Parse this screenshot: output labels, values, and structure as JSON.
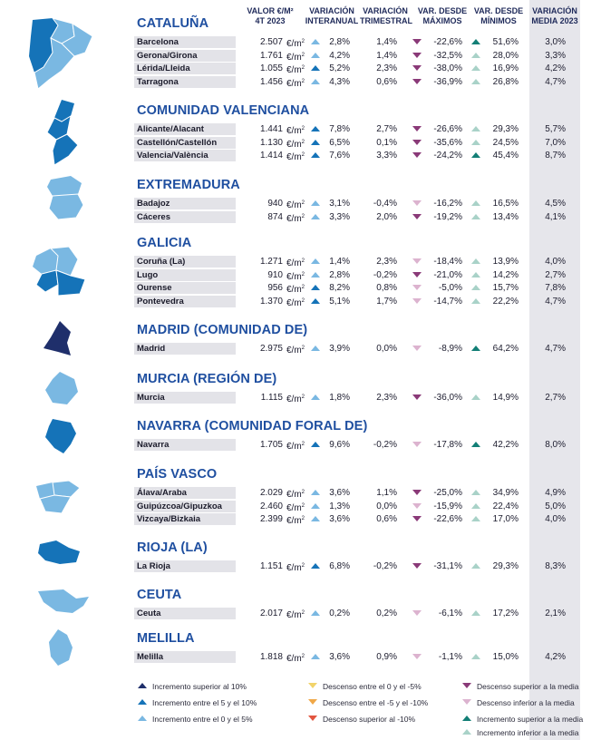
{
  "headers": {
    "valor": "VALOR €/M² 4T 2023",
    "interanual": "VARIACIÓN INTERANUAL",
    "trimestral": "VARIACIÓN TRIMESTRAL",
    "maximos": "VAR. DESDE MÁXIMOS",
    "minimos": "VAR. DESDE MÍNIMOS",
    "media": "VARIACIÓN MEDIA 2023"
  },
  "unit": "€/m",
  "unit_sup": "2",
  "colors": {
    "dark_blue": "#1f2f6b",
    "mid_blue": "#1573b8",
    "light_blue": "#7ab8e2",
    "dark_purple": "#8a3a78",
    "light_purple": "#dcb3cf",
    "dark_teal": "#137f76",
    "light_teal": "#a9d2c8",
    "yellow": "#f1d36a",
    "orange": "#f0a848",
    "red": "#e2553f",
    "title_blue": "#1f4fa0"
  },
  "regions": [
    {
      "title": "CATALUÑA",
      "rows": [
        {
          "name": "Barcelona",
          "val": "2.507",
          "i": "2,8%",
          "ic": "light_blue",
          "t": "1,4%",
          "mx": "-22,6%",
          "mxc": "dark_purple",
          "mn": "51,6%",
          "mnc": "dark_teal",
          "md": "3,0%"
        },
        {
          "name": "Gerona/Girona",
          "val": "1.761",
          "i": "4,2%",
          "ic": "light_blue",
          "t": "1,4%",
          "mx": "-32,5%",
          "mxc": "dark_purple",
          "mn": "28,0%",
          "mnc": "light_teal",
          "md": "3,3%"
        },
        {
          "name": "Lérida/Lleida",
          "val": "1.055",
          "i": "5,2%",
          "ic": "mid_blue",
          "t": "2,3%",
          "mx": "-38,0%",
          "mxc": "dark_purple",
          "mn": "16,9%",
          "mnc": "light_teal",
          "md": "4,2%"
        },
        {
          "name": "Tarragona",
          "val": "1.456",
          "i": "4,3%",
          "ic": "light_blue",
          "t": "0,6%",
          "mx": "-36,9%",
          "mxc": "dark_purple",
          "mn": "26,8%",
          "mnc": "light_teal",
          "md": "4,7%"
        }
      ]
    },
    {
      "title": "COMUNIDAD VALENCIANA",
      "rows": [
        {
          "name": "Alicante/Alacant",
          "val": "1.441",
          "i": "7,8%",
          "ic": "mid_blue",
          "t": "2,7%",
          "mx": "-26,6%",
          "mxc": "dark_purple",
          "mn": "29,3%",
          "mnc": "light_teal",
          "md": "5,7%"
        },
        {
          "name": "Castellón/Castellón",
          "val": "1.130",
          "i": "6,5%",
          "ic": "mid_blue",
          "t": "0,1%",
          "mx": "-35,6%",
          "mxc": "dark_purple",
          "mn": "24,5%",
          "mnc": "light_teal",
          "md": "7,0%"
        },
        {
          "name": "Valencia/València",
          "val": "1.414",
          "i": "7,6%",
          "ic": "mid_blue",
          "t": "3,3%",
          "mx": "-24,2%",
          "mxc": "dark_purple",
          "mn": "45,4%",
          "mnc": "dark_teal",
          "md": "8,7%"
        }
      ]
    },
    {
      "title": "EXTREMADURA",
      "rows": [
        {
          "name": "Badajoz",
          "val": "940",
          "i": "3,1%",
          "ic": "light_blue",
          "t": "-0,4%",
          "mx": "-16,2%",
          "mxc": "light_purple",
          "mn": "16,5%",
          "mnc": "light_teal",
          "md": "4,5%"
        },
        {
          "name": "Cáceres",
          "val": "874",
          "i": "3,3%",
          "ic": "light_blue",
          "t": "2,0%",
          "mx": "-19,2%",
          "mxc": "dark_purple",
          "mn": "13,4%",
          "mnc": "light_teal",
          "md": "4,1%"
        }
      ]
    },
    {
      "title": "GALICIA",
      "rows": [
        {
          "name": "Coruña (La)",
          "val": "1.271",
          "i": "1,4%",
          "ic": "light_blue",
          "t": "2,3%",
          "mx": "-18,4%",
          "mxc": "light_purple",
          "mn": "13,9%",
          "mnc": "light_teal",
          "md": "4,0%"
        },
        {
          "name": "Lugo",
          "val": "910",
          "i": "2,8%",
          "ic": "light_blue",
          "t": "-0,2%",
          "mx": "-21,0%",
          "mxc": "dark_purple",
          "mn": "14,2%",
          "mnc": "light_teal",
          "md": "2,7%"
        },
        {
          "name": "Ourense",
          "val": "956",
          "i": "8,2%",
          "ic": "mid_blue",
          "t": "0,8%",
          "mx": "-5,0%",
          "mxc": "light_purple",
          "mn": "15,7%",
          "mnc": "light_teal",
          "md": "7,8%"
        },
        {
          "name": "Pontevedra",
          "val": "1.370",
          "i": "5,1%",
          "ic": "mid_blue",
          "t": "1,7%",
          "mx": "-14,7%",
          "mxc": "light_purple",
          "mn": "22,2%",
          "mnc": "light_teal",
          "md": "4,7%"
        }
      ]
    },
    {
      "title": "MADRID (COMUNIDAD DE)",
      "rows": [
        {
          "name": "Madrid",
          "val": "2.975",
          "i": "3,9%",
          "ic": "light_blue",
          "t": "0,0%",
          "mx": "-8,9%",
          "mxc": "light_purple",
          "mn": "64,2%",
          "mnc": "dark_teal",
          "md": "4,7%"
        }
      ]
    },
    {
      "title": "MURCIA (REGIÓN DE)",
      "rows": [
        {
          "name": "Murcia",
          "val": "1.115",
          "i": "1,8%",
          "ic": "light_blue",
          "t": "2,3%",
          "mx": "-36,0%",
          "mxc": "dark_purple",
          "mn": "14,9%",
          "mnc": "light_teal",
          "md": "2,7%"
        }
      ]
    },
    {
      "title": "NAVARRA (COMUNIDAD FORAL DE)",
      "rows": [
        {
          "name": "Navarra",
          "val": "1.705",
          "i": "9,6%",
          "ic": "mid_blue",
          "t": "-0,2%",
          "mx": "-17,8%",
          "mxc": "light_purple",
          "mn": "42,2%",
          "mnc": "dark_teal",
          "md": "8,0%"
        }
      ]
    },
    {
      "title": "PAÍS VASCO",
      "rows": [
        {
          "name": "Álava/Araba",
          "val": "2.029",
          "i": "3,6%",
          "ic": "light_blue",
          "t": "1,1%",
          "mx": "-25,0%",
          "mxc": "dark_purple",
          "mn": "34,9%",
          "mnc": "light_teal",
          "md": "4,9%"
        },
        {
          "name": "Guipúzcoa/Gipuzkoa",
          "val": "2.460",
          "i": "1,3%",
          "ic": "light_blue",
          "t": "0,0%",
          "mx": "-15,9%",
          "mxc": "light_purple",
          "mn": "22,4%",
          "mnc": "light_teal",
          "md": "5,0%"
        },
        {
          "name": "Vizcaya/Bizkaia",
          "val": "2.399",
          "i": "3,6%",
          "ic": "light_blue",
          "t": "0,6%",
          "mx": "-22,6%",
          "mxc": "dark_purple",
          "mn": "17,0%",
          "mnc": "light_teal",
          "md": "4,0%"
        }
      ]
    },
    {
      "title": "RIOJA (LA)",
      "rows": [
        {
          "name": "La Rioja",
          "val": "1.151",
          "i": "6,8%",
          "ic": "mid_blue",
          "t": "-0,2%",
          "mx": "-31,1%",
          "mxc": "dark_purple",
          "mn": "29,3%",
          "mnc": "light_teal",
          "md": "8,3%"
        }
      ]
    },
    {
      "title": "CEUTA",
      "rows": [
        {
          "name": "Ceuta",
          "val": "2.017",
          "i": "0,2%",
          "ic": "light_blue",
          "t": "0,2%",
          "mx": "-6,1%",
          "mxc": "light_purple",
          "mn": "17,2%",
          "mnc": "light_teal",
          "md": "2,1%"
        }
      ]
    },
    {
      "title": "MELILLA",
      "rows": [
        {
          "name": "Melilla",
          "val": "1.818",
          "i": "3,6%",
          "ic": "light_blue",
          "t": "0,9%",
          "mx": "-1,1%",
          "mxc": "light_purple",
          "mn": "15,0%",
          "mnc": "light_teal",
          "md": "4,2%"
        }
      ]
    }
  ],
  "legend": [
    {
      "label": "Incremento superior al 10%",
      "color": "dark_blue",
      "dir": "up"
    },
    {
      "label": "Incremento entre el 5 y el 10%",
      "color": "mid_blue",
      "dir": "up"
    },
    {
      "label": "Incremento entre el 0 y el 5%",
      "color": "light_blue",
      "dir": "up"
    },
    {
      "label": "Descenso entre el 0 y el -5%",
      "color": "yellow",
      "dir": "down"
    },
    {
      "label": "Descenso entre el -5 y el -10%",
      "color": "orange",
      "dir": "down"
    },
    {
      "label": "Descenso superior al -10%",
      "color": "red",
      "dir": "down"
    },
    {
      "label": "Descenso superior a la media",
      "color": "dark_purple",
      "dir": "down"
    },
    {
      "label": "Descenso inferior a la media",
      "color": "light_purple",
      "dir": "down"
    },
    {
      "label": "Incremento superior a la media",
      "color": "dark_teal",
      "dir": "up"
    },
    {
      "label": "Incremento inferior a la media",
      "color": "light_teal",
      "dir": "up"
    }
  ]
}
